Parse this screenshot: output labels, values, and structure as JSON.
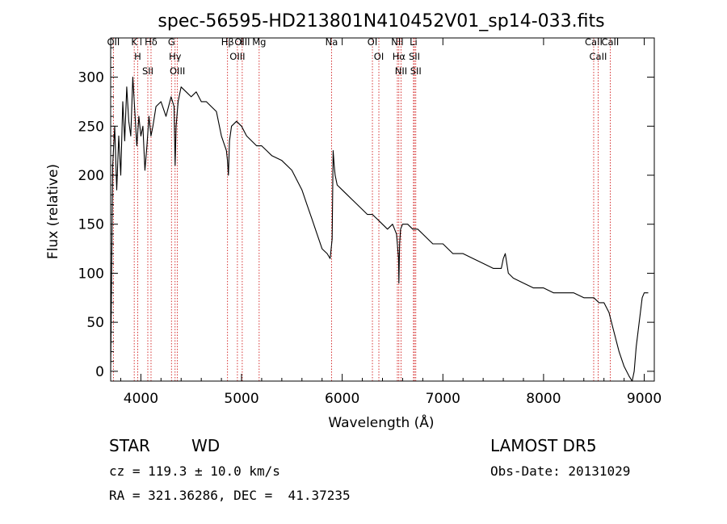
{
  "chart_data": {
    "type": "line",
    "title": "spec-56595-HD213801N410452V01_sp14-033.fits",
    "xlabel": "Wavelength (Å)",
    "ylabel": "Flux (relative)",
    "xlim": [
      3700,
      9100
    ],
    "ylim": [
      -10,
      340
    ],
    "x_ticks": [
      4000,
      5000,
      6000,
      7000,
      8000,
      9000
    ],
    "y_ticks": [
      0,
      50,
      100,
      150,
      200,
      250,
      300
    ],
    "grid": false,
    "line_color": "#000000",
    "marker_color": "#cc0000",
    "series": [
      {
        "x": [
          3700,
          3720,
          3740,
          3760,
          3780,
          3800,
          3820,
          3840,
          3860,
          3880,
          3900,
          3920,
          3940,
          3960,
          3980,
          4000,
          4020,
          4040,
          4060,
          4080,
          4100,
          4120,
          4150,
          4200,
          4250,
          4300,
          4330,
          4340,
          4350,
          4370,
          4400,
          4450,
          4500,
          4550,
          4600,
          4650,
          4700,
          4750,
          4800,
          4850,
          4860,
          4870,
          4880,
          4900,
          4950,
          5000,
          5050,
          5100,
          5150,
          5200,
          5250,
          5300,
          5400,
          5500,
          5600,
          5650,
          5700,
          5750,
          5800,
          5850,
          5880,
          5900,
          5910,
          5920,
          5930,
          5950,
          6000,
          6050,
          6100,
          6150,
          6200,
          6250,
          6300,
          6350,
          6400,
          6450,
          6500,
          6540,
          6560,
          6563,
          6570,
          6580,
          6600,
          6650,
          6700,
          6750,
          6800,
          6900,
          7000,
          7100,
          7200,
          7300,
          7400,
          7500,
          7580,
          7600,
          7620,
          7650,
          7700,
          7800,
          7900,
          8000,
          8100,
          8200,
          8300,
          8400,
          8500,
          8550,
          8600,
          8650,
          8700,
          8750,
          8800,
          8850,
          8880,
          8900,
          8920,
          8950,
          8980,
          9000,
          9020,
          9040
        ],
        "y": [
          0,
          210,
          250,
          185,
          240,
          200,
          275,
          235,
          290,
          255,
          240,
          300,
          265,
          230,
          260,
          240,
          250,
          205,
          230,
          260,
          240,
          250,
          270,
          275,
          260,
          280,
          270,
          210,
          250,
          275,
          290,
          285,
          280,
          285,
          275,
          275,
          270,
          265,
          240,
          225,
          215,
          200,
          235,
          250,
          255,
          250,
          240,
          235,
          230,
          230,
          225,
          220,
          215,
          205,
          185,
          170,
          155,
          140,
          125,
          120,
          115,
          135,
          225,
          210,
          200,
          190,
          185,
          180,
          175,
          170,
          165,
          160,
          160,
          155,
          150,
          145,
          150,
          140,
          115,
          90,
          130,
          145,
          150,
          150,
          145,
          145,
          140,
          130,
          130,
          120,
          120,
          115,
          110,
          105,
          105,
          115,
          120,
          100,
          95,
          90,
          85,
          85,
          80,
          80,
          80,
          75,
          75,
          70,
          70,
          60,
          40,
          20,
          5,
          -5,
          -10,
          0,
          25,
          50,
          75,
          80,
          80,
          80
        ]
      }
    ],
    "line_markers": [
      {
        "label": "Hδ",
        "x": 4101
      },
      {
        "label": "Hγ",
        "x": 4340
      },
      {
        "label": "Hβ",
        "x": 4861
      },
      {
        "label": "Hα",
        "x": 6563
      },
      {
        "label": "OII",
        "x": 3727
      },
      {
        "label": "OIII",
        "x": 4363
      },
      {
        "label": "OIII",
        "x": 4959
      },
      {
        "label": "OIII",
        "x": 5007
      },
      {
        "label": "OI",
        "x": 6300
      },
      {
        "label": "OI",
        "x": 6364
      },
      {
        "label": "NII",
        "x": 6548
      },
      {
        "label": "NII",
        "x": 6584
      },
      {
        "label": "SII",
        "x": 4069
      },
      {
        "label": "SII",
        "x": 6717
      },
      {
        "label": "SII",
        "x": 6731
      },
      {
        "label": "K",
        "x": 3934
      },
      {
        "label": "H",
        "x": 3968
      },
      {
        "label": "G",
        "x": 4304
      },
      {
        "label": "Mg",
        "x": 5175
      },
      {
        "label": "Na",
        "x": 5894
      },
      {
        "label": "Li",
        "x": 6708
      },
      {
        "label": "CaII",
        "x": 8498
      },
      {
        "label": "CaII",
        "x": 8542
      },
      {
        "label": "CaII",
        "x": 8662
      }
    ]
  },
  "info": {
    "object_class": "STAR",
    "subclass": "WD",
    "survey": "LAMOST DR5",
    "redshift": "cz = 119.3 ± 10.0 km/s",
    "obs_date": "Obs-Date: 20131029",
    "coords": "RA = 321.36286, DEC =  41.37235"
  }
}
